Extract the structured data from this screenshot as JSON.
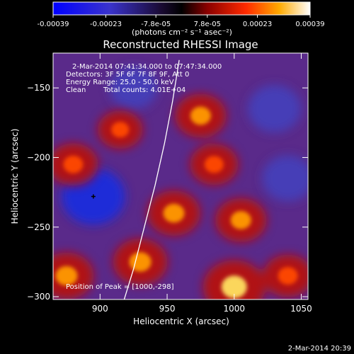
{
  "colorbar": {
    "ticks": [
      "-0.00039",
      "-0.00023",
      "-7.8e-05",
      "7.8e-05",
      "0.00023",
      "0.00039"
    ],
    "tick_values": [
      -0.00039,
      -0.00023,
      -7.8e-05,
      7.8e-05,
      0.00023,
      0.00039
    ],
    "vmin": -0.00039,
    "vmax": 0.00039,
    "unit_label": "(photons cm⁻² s⁻¹ asec⁻²)"
  },
  "chart_data": {
    "type": "heatmap",
    "title": "Reconstructed RHESSI Image",
    "xlabel": "Heliocentric X (arcsec)",
    "ylabel": "Heliocentric Y (arcsec)",
    "xlim": [
      865,
      1055
    ],
    "ylim": [
      -302,
      -125
    ],
    "xticks": [
      900,
      950,
      1000,
      1050
    ],
    "yticks": [
      -150,
      -200,
      -250,
      -300
    ],
    "xtick_labels": [
      "900",
      "950",
      "1000",
      "1050"
    ],
    "ytick_labels": [
      "−150",
      "−200",
      "−250",
      "−300"
    ],
    "annotations": {
      "time_range": "2-Mar-2014 07:41:34.000 to 07:47:34.000",
      "detectors": "Detectors: 3F 5F 6F 7F 8F 9F, Att 0",
      "energy": "Energy Range: 25.0 - 50.0 keV",
      "method": "Clean",
      "total_counts": "Total counts: 4.01E+04",
      "peak": "Position of Peak = [1000,-298]"
    },
    "limb_curve": [
      [
        918,
        -302
      ],
      [
        925,
        -280
      ],
      [
        933,
        -250
      ],
      [
        941,
        -220
      ],
      [
        948,
        -190
      ],
      [
        954,
        -160
      ],
      [
        959,
        -130
      ]
    ],
    "emission_regions": [
      {
        "x": 975,
        "y": -170,
        "level": 0.65
      },
      {
        "x": 985,
        "y": -205,
        "level": 0.55
      },
      {
        "x": 880,
        "y": -205,
        "level": 0.6
      },
      {
        "x": 955,
        "y": -240,
        "level": 0.7
      },
      {
        "x": 1005,
        "y": -245,
        "level": 0.65
      },
      {
        "x": 930,
        "y": -275,
        "level": 0.75
      },
      {
        "x": 1000,
        "y": -293,
        "level": 1.0
      },
      {
        "x": 875,
        "y": -285,
        "level": 0.75
      },
      {
        "x": 915,
        "y": -180,
        "level": 0.45
      },
      {
        "x": 1040,
        "y": -285,
        "level": 0.6
      }
    ],
    "absorption_regions": [
      {
        "x": 895,
        "y": -228,
        "level": 1.0
      },
      {
        "x": 1030,
        "y": -165,
        "level": 0.7
      },
      {
        "x": 1040,
        "y": -215,
        "level": 0.65
      },
      {
        "x": 925,
        "y": -150,
        "level": 0.55
      }
    ]
  },
  "footer": {
    "timestamp": "2-Mar-2014 20:39"
  }
}
